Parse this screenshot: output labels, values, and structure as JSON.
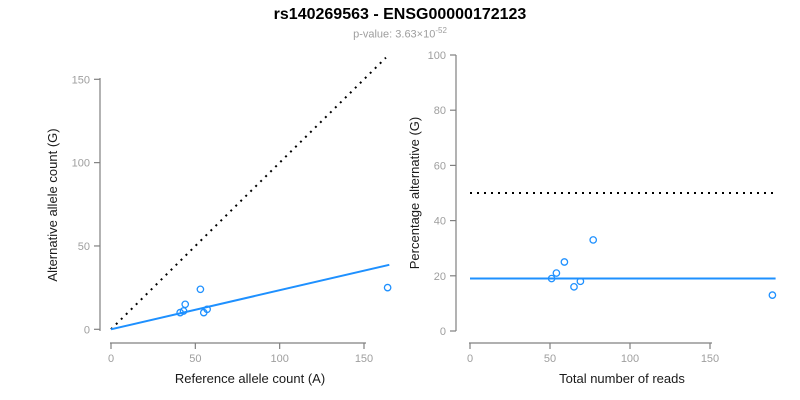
{
  "header": {
    "title": "rs140269563 - ENSG00000172123",
    "pvalue_prefix": "p-value: 3.63×10",
    "pvalue_exponent": "-52"
  },
  "colors": {
    "accent_blue": "#1E90FF",
    "dotted_black": "#000000",
    "axis_line": "#808080",
    "tick_label": "#9e9e9e",
    "axis_title": "#1a1a1a",
    "subtitle_gray": "#9e9e9e"
  },
  "chart_data": [
    {
      "type": "scatter",
      "xlabel": "Reference allele count (A)",
      "ylabel": "Alternative allele count (G)",
      "xticks": [
        0,
        50,
        100,
        150
      ],
      "yticks": [
        0,
        50,
        100,
        150
      ],
      "xlim": [
        0,
        165
      ],
      "ylim": [
        0,
        165
      ],
      "grid": false,
      "points": [
        [
          41,
          10
        ],
        [
          43,
          11
        ],
        [
          44,
          15
        ],
        [
          53,
          24
        ],
        [
          55,
          10
        ],
        [
          57,
          12
        ],
        [
          164,
          25
        ]
      ],
      "lines": [
        {
          "name": "identity-line",
          "style": "dotted",
          "color": "#000000",
          "x": [
            0,
            163
          ],
          "y": [
            0,
            163
          ]
        },
        {
          "name": "fit-line",
          "style": "solid",
          "color": "#1E90FF",
          "x": [
            0,
            165
          ],
          "y": [
            0,
            38.7
          ]
        }
      ]
    },
    {
      "type": "scatter",
      "xlabel": "Total number of reads",
      "ylabel": "Percentage alternative (G)",
      "xticks": [
        0,
        50,
        100,
        150
      ],
      "yticks": [
        0,
        20,
        40,
        60,
        80,
        100
      ],
      "xlim": [
        0,
        192
      ],
      "ylim": [
        0,
        100
      ],
      "grid": false,
      "points": [
        [
          51,
          19
        ],
        [
          54,
          21
        ],
        [
          59,
          25
        ],
        [
          65,
          16
        ],
        [
          69,
          18
        ],
        [
          77,
          33
        ],
        [
          189,
          13
        ]
      ],
      "lines": [
        {
          "name": "expected-50pct-line",
          "style": "dotted",
          "color": "#000000",
          "x": [
            0,
            191
          ],
          "y": [
            50,
            50
          ]
        },
        {
          "name": "mean-percentage-line",
          "style": "solid",
          "color": "#1E90FF",
          "x": [
            0,
            191
          ],
          "y": [
            19,
            19
          ]
        }
      ]
    }
  ]
}
